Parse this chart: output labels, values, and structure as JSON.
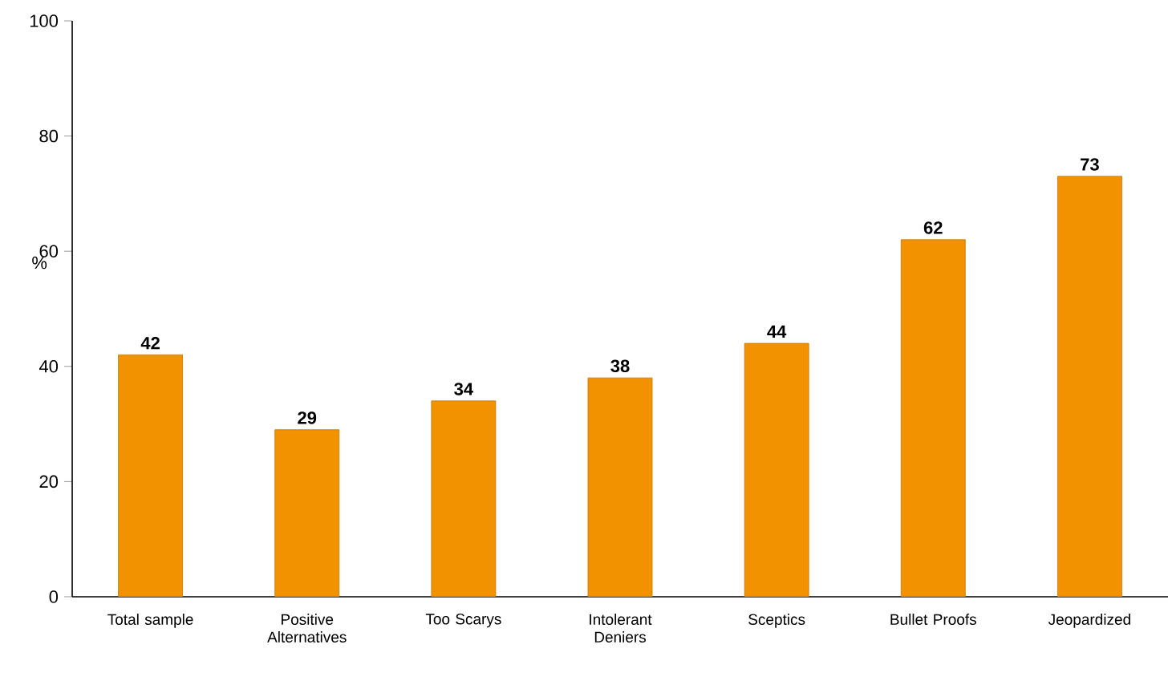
{
  "chart_data": {
    "type": "bar",
    "ylabel": "%",
    "categories": [
      "Total sample",
      "Positive Alternatives",
      "Too Scarys",
      "Intolerant Deniers",
      "Sceptics",
      "Bullet Proofs",
      "Jeopardized"
    ],
    "values": [
      42,
      29,
      34,
      38,
      44,
      62,
      73
    ],
    "color": "#f39200",
    "ylim": [
      0,
      100
    ],
    "yticks": [
      0,
      20,
      40,
      60,
      80,
      100
    ],
    "data_labels": true
  }
}
